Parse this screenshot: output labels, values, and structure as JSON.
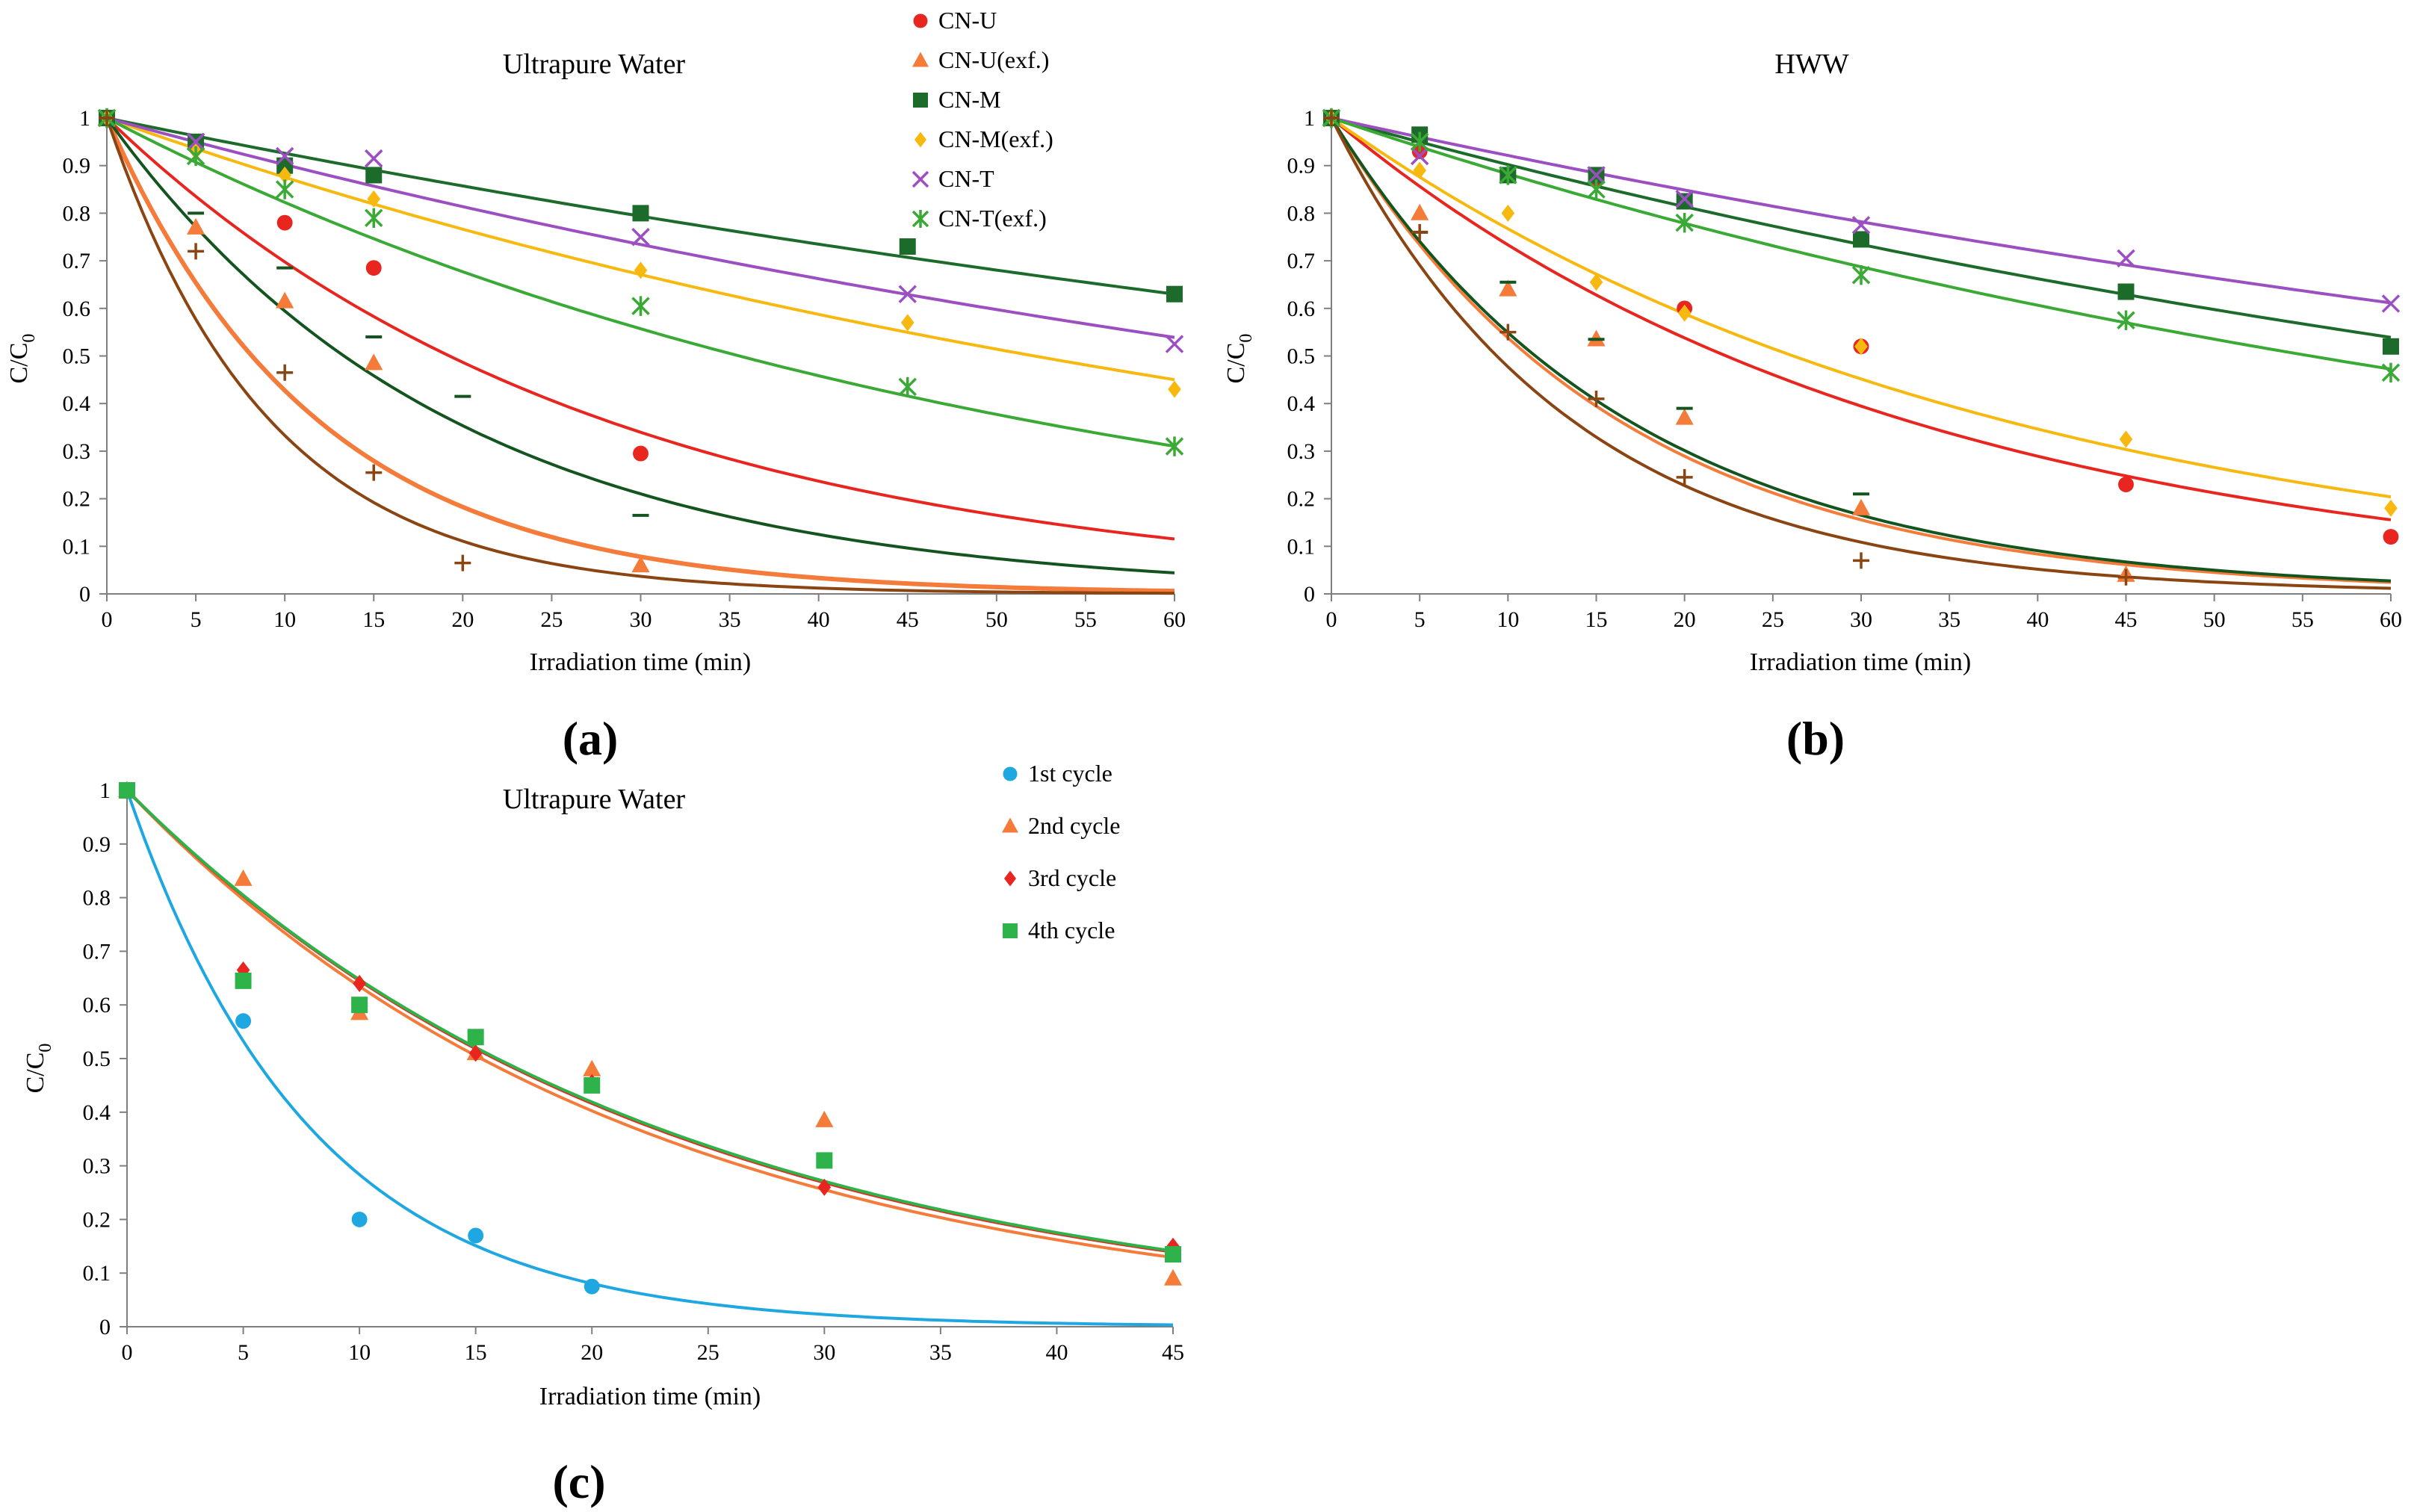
{
  "chart_data": [
    {
      "type": "scatter",
      "panel_label": "(a)",
      "title": "Ultrapure Water",
      "xlabel": "Irradiation time (min)",
      "ylabel_main": "C/C",
      "ylabel_sub": "0",
      "xlim": [
        0,
        60
      ],
      "ylim": [
        0,
        1
      ],
      "xticks": [
        0,
        5,
        10,
        15,
        20,
        25,
        30,
        35,
        40,
        45,
        50,
        55,
        60
      ],
      "yticks": [
        0,
        0.1,
        0.2,
        0.3,
        0.4,
        0.5,
        0.6,
        0.7,
        0.8,
        0.9,
        1
      ],
      "grid": false,
      "legend_position": "top-center",
      "series": [
        {
          "name": "CN-U",
          "marker": "circle",
          "color": "#e8251e",
          "x": [
            0,
            10,
            15,
            30
          ],
          "y": [
            1,
            0.78,
            0.685,
            0.295
          ],
          "fit_k": 0.036
        },
        {
          "name": "CN-U(exf.)",
          "marker": "triangle",
          "color": "#f47b3a",
          "x": [
            0,
            5,
            10,
            15,
            30
          ],
          "y": [
            1,
            0.77,
            0.615,
            0.485,
            0.06
          ],
          "fit_k": 0.085
        },
        {
          "name": "CN-M",
          "marker": "square",
          "color": "#1d6b2b",
          "x": [
            0,
            5,
            10,
            15,
            30,
            45,
            60
          ],
          "y": [
            1,
            0.95,
            0.9,
            0.88,
            0.8,
            0.73,
            0.63
          ],
          "fit_k": 0.0077
        },
        {
          "name": "CN-M(exf.)",
          "marker": "diamond",
          "color": "#f7b90f",
          "x": [
            0,
            5,
            10,
            15,
            30,
            45,
            60
          ],
          "y": [
            1,
            0.93,
            0.88,
            0.83,
            0.68,
            0.57,
            0.43
          ],
          "fit_k": 0.0133
        },
        {
          "name": "CN-T",
          "marker": "x",
          "color": "#9c4fc1",
          "x": [
            0,
            5,
            10,
            15,
            30,
            45,
            60
          ],
          "y": [
            1,
            0.95,
            0.92,
            0.915,
            0.75,
            0.63,
            0.525
          ],
          "fit_k": 0.0103
        },
        {
          "name": "CN-T(exf.)",
          "marker": "star",
          "color": "#3aa935",
          "x": [
            0,
            5,
            10,
            15,
            30,
            45,
            60
          ],
          "y": [
            1,
            0.92,
            0.85,
            0.79,
            0.605,
            0.435,
            0.31
          ],
          "fit_k": 0.0195
        },
        {
          "name": "",
          "marker": "dash",
          "color": "#14551f",
          "x": [
            0,
            5,
            10,
            15,
            20,
            30
          ],
          "y": [
            1,
            0.8,
            0.685,
            0.54,
            0.415,
            0.165
          ],
          "fit_k": 0.052
        },
        {
          "name": "",
          "marker": "plus",
          "color": "#8b4513",
          "x": [
            0,
            5,
            10,
            15,
            20
          ],
          "y": [
            1,
            0.72,
            0.465,
            0.255,
            0.065
          ],
          "fit_k": 0.11
        }
      ]
    },
    {
      "type": "scatter",
      "panel_label": "(b)",
      "title": "HWW",
      "xlabel": "Irradiation time (min)",
      "ylabel_main": "C/C",
      "ylabel_sub": "0",
      "xlim": [
        0,
        60
      ],
      "ylim": [
        0,
        1
      ],
      "xticks": [
        0,
        5,
        10,
        15,
        20,
        25,
        30,
        35,
        40,
        45,
        50,
        55,
        60
      ],
      "yticks": [
        0,
        0.1,
        0.2,
        0.3,
        0.4,
        0.5,
        0.6,
        0.7,
        0.8,
        0.9,
        1
      ],
      "grid": false,
      "series": [
        {
          "name": "CN-U",
          "marker": "circle",
          "color": "#e8251e",
          "x": [
            0,
            5,
            15,
            20,
            30,
            45,
            60
          ],
          "y": [
            1,
            0.93,
            0.87,
            0.6,
            0.52,
            0.23,
            0.12
          ],
          "fit_k": 0.031
        },
        {
          "name": "CN-U(exf.)",
          "marker": "triangle",
          "color": "#f47b3a",
          "x": [
            0,
            5,
            10,
            15,
            20,
            30,
            45
          ],
          "y": [
            1,
            0.8,
            0.64,
            0.535,
            0.37,
            0.18,
            0.04
          ],
          "fit_k": 0.062
        },
        {
          "name": "CN-M",
          "marker": "square",
          "color": "#1d6b2b",
          "x": [
            0,
            5,
            10,
            15,
            20,
            30,
            45,
            60
          ],
          "y": [
            1,
            0.965,
            0.88,
            0.88,
            0.825,
            0.745,
            0.635,
            0.52
          ],
          "fit_k": 0.0103
        },
        {
          "name": "CN-M(exf.)",
          "marker": "diamond",
          "color": "#f7b90f",
          "x": [
            0,
            5,
            10,
            15,
            20,
            30,
            45,
            60
          ],
          "y": [
            1,
            0.89,
            0.8,
            0.655,
            0.59,
            0.52,
            0.325,
            0.18
          ],
          "fit_k": 0.0265
        },
        {
          "name": "CN-T",
          "marker": "x",
          "color": "#9c4fc1",
          "x": [
            0,
            5,
            15,
            20,
            30,
            45,
            60
          ],
          "y": [
            1,
            0.92,
            0.88,
            0.83,
            0.775,
            0.705,
            0.61
          ],
          "fit_k": 0.0082
        },
        {
          "name": "CN-T(exf.)",
          "marker": "star",
          "color": "#3aa935",
          "x": [
            0,
            5,
            10,
            15,
            20,
            30,
            45,
            60
          ],
          "y": [
            1,
            0.95,
            0.88,
            0.85,
            0.78,
            0.67,
            0.575,
            0.465
          ],
          "fit_k": 0.0125
        },
        {
          "name": "",
          "marker": "dash",
          "color": "#14551f",
          "x": [
            0,
            5,
            10,
            15,
            20,
            30
          ],
          "y": [
            1,
            0.76,
            0.655,
            0.535,
            0.39,
            0.21
          ],
          "fit_k": 0.06
        },
        {
          "name": "",
          "marker": "plus",
          "color": "#8b4513",
          "x": [
            0,
            5,
            10,
            15,
            20,
            30,
            45
          ],
          "y": [
            1,
            0.76,
            0.55,
            0.41,
            0.245,
            0.07,
            0.035
          ],
          "fit_k": 0.074
        }
      ]
    },
    {
      "type": "scatter",
      "panel_label": "(c)",
      "title": "Ultrapure Water",
      "xlabel": "Irradiation time (min)",
      "ylabel_main": "C/C",
      "ylabel_sub": "0",
      "xlim": [
        0,
        45
      ],
      "ylim": [
        0,
        1
      ],
      "xticks": [
        0,
        5,
        10,
        15,
        20,
        25,
        30,
        35,
        40,
        45
      ],
      "yticks": [
        0,
        0.1,
        0.2,
        0.3,
        0.4,
        0.5,
        0.6,
        0.7,
        0.8,
        0.9,
        1
      ],
      "grid": false,
      "legend_position": "top-right",
      "series": [
        {
          "name": "1st cycle",
          "marker": "circle",
          "color": "#1ea7e1",
          "x": [
            0,
            5,
            10,
            15,
            20
          ],
          "y": [
            1,
            0.57,
            0.2,
            0.17,
            0.075
          ],
          "fit_k": 0.126
        },
        {
          "name": "2nd cycle",
          "marker": "triangle",
          "color": "#f47b3a",
          "x": [
            0,
            5,
            10,
            15,
            20,
            30,
            45
          ],
          "y": [
            1,
            0.835,
            0.585,
            0.51,
            0.48,
            0.385,
            0.09
          ],
          "fit_k": 0.0455
        },
        {
          "name": "3rd cycle",
          "marker": "diamond",
          "color": "#e8251e",
          "x": [
            0,
            5,
            10,
            15,
            20,
            30,
            45
          ],
          "y": [
            1,
            0.665,
            0.64,
            0.51,
            0.455,
            0.26,
            0.15
          ],
          "fit_k": 0.0438
        },
        {
          "name": "4th cycle",
          "marker": "square",
          "color": "#2db34a",
          "x": [
            0,
            5,
            10,
            15,
            20,
            30,
            45
          ],
          "y": [
            1,
            0.645,
            0.6,
            0.54,
            0.45,
            0.31,
            0.135
          ],
          "fit_k": 0.0435
        }
      ]
    }
  ]
}
